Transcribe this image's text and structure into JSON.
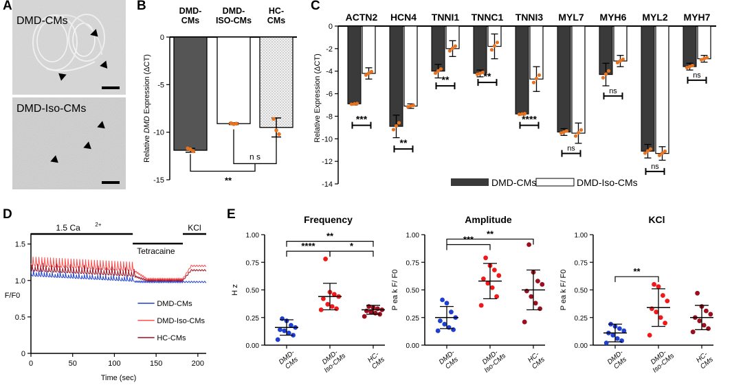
{
  "panel_labels": {
    "a": "A",
    "b": "B",
    "c": "C",
    "d": "D",
    "e": "E"
  },
  "colors": {
    "dmd_bar": "#555555",
    "orange_dot": "#E8731E",
    "blue": "#1F3FD0",
    "red": "#F01818",
    "darkred": "#9B0E1E",
    "pink_trace": "#FF4A4A"
  },
  "micro": {
    "top_label": "DMD-CMs",
    "bottom_label": "DMD-Iso-CMs"
  },
  "chart_data": [
    {
      "id": "B",
      "type": "bar",
      "categories": [
        "DMD-\nCMs",
        "DMD-\nISO-CMs",
        "HC-\nCMs"
      ],
      "values": [
        -11.9,
        -9.1,
        -9.5
      ],
      "errors": [
        0.2,
        0.1,
        1.0
      ],
      "points": [
        [
          -11.7,
          -11.8,
          -12.0
        ],
        [
          -9.05,
          -9.15,
          -9.1
        ],
        [
          -8.6,
          -9.8,
          -10.2
        ]
      ],
      "ylabel_pre": "Relative ",
      "ylabel_italic": "DMD",
      "ylabel_post": " Expression (ΔCT)",
      "ylim": [
        -15,
        0
      ],
      "yticks": [
        "0",
        "-5",
        "-10",
        "-15"
      ],
      "sig": [
        {
          "text": "** ",
          "between": [
            0,
            2
          ]
        },
        {
          "text": "n s",
          "between": [
            1,
            2
          ]
        }
      ]
    },
    {
      "id": "C",
      "type": "bar",
      "categories": [
        "ACTN2",
        "HCN4",
        "TNNI1",
        "TNNC1",
        "TNNI3",
        "MYL7",
        "MYH6",
        "MYL2",
        "MYH7"
      ],
      "series": [
        {
          "name": "DMD-CMs",
          "values": [
            -6.9,
            -8.9,
            -4.0,
            -4.2,
            -7.8,
            -9.4,
            -4.3,
            -11.1,
            -3.6
          ],
          "errors": [
            0.1,
            1.0,
            0.6,
            0.3,
            0.1,
            0.3,
            1.0,
            0.6,
            0.3
          ]
        },
        {
          "name": "DMD-Iso-CMs",
          "values": [
            -4.2,
            -7.1,
            -2.0,
            -1.8,
            -4.7,
            -9.5,
            -3.1,
            -11.3,
            -2.9
          ],
          "errors": [
            0.5,
            0.2,
            0.7,
            1.1,
            1.1,
            0.9,
            0.5,
            0.6,
            0.3
          ]
        }
      ],
      "ylabel": "Relative Expression (ΔCT)",
      "ylim": [
        -14,
        0
      ],
      "yticks": [
        "0",
        "-2",
        "-4",
        "-6",
        "-8",
        "-10",
        "-12",
        "-14"
      ],
      "sig": [
        "***",
        "**",
        "**",
        "**",
        "****",
        "ns",
        "ns",
        "ns",
        "ns"
      ],
      "sig_y": [
        -8.8,
        -10.9,
        -5.3,
        -5.0,
        -8.8,
        -11.3,
        -6.2,
        -12.9,
        -4.8
      ],
      "legend": [
        "DMD-CMs",
        "DMD-Iso-CMs"
      ]
    },
    {
      "id": "D",
      "type": "line",
      "xlabel": "Time (sec)",
      "ylabel": "F/F0",
      "xlim": [
        0,
        210
      ],
      "ylim": [
        0,
        1.6
      ],
      "xticks": [
        "0",
        "50",
        "100",
        "150",
        "200"
      ],
      "yticks": [
        "0",
        "0.5",
        "1.0",
        "1.5"
      ],
      "annotations": {
        "ca": "1.5  Ca",
        "ca_sup": "2+",
        "tetracaine": "Tetracaine",
        "kcl": "KCl"
      },
      "phases": [
        [
          0,
          122
        ],
        [
          122,
          182
        ],
        [
          182,
          210
        ]
      ],
      "legend": [
        "DMD-CMs",
        "DMD-Iso-CMs",
        "HC-CMs"
      ]
    },
    {
      "id": "E1",
      "type": "scatter",
      "title": "Frequency",
      "ylabel": "H z",
      "ylim": [
        0,
        1.0
      ],
      "yticks": [
        "0.00",
        "0.25",
        "0.50",
        "0.75",
        "1.00"
      ],
      "groups": [
        "DMD-\nCMs",
        "DMD-\nIso-CMs",
        "HC-\nCMs"
      ],
      "points": [
        [
          0.05,
          0.09,
          0.11,
          0.13,
          0.14,
          0.16,
          0.18,
          0.22,
          0.24
        ],
        [
          0.32,
          0.33,
          0.35,
          0.37,
          0.42,
          0.44,
          0.46,
          0.48,
          0.78
        ],
        [
          0.26,
          0.28,
          0.29,
          0.3,
          0.31,
          0.32,
          0.33,
          0.34,
          0.35
        ]
      ],
      "mean": [
        0.16,
        0.44,
        0.32
      ],
      "sd": [
        0.07,
        0.12,
        0.04
      ],
      "sig": [
        {
          "text": "**",
          "between": [
            0,
            2
          ]
        },
        {
          "text": "****",
          "between": [
            0,
            1
          ]
        },
        {
          "text": "*",
          "between": [
            1,
            2
          ]
        }
      ]
    },
    {
      "id": "E2",
      "type": "scatter",
      "title": "Amplitude",
      "ylabel": "P ea k  F/ F0",
      "ylim": [
        0,
        1.0
      ],
      "yticks": [
        "0.00",
        "0.25",
        "0.50",
        "0.75",
        "1.00"
      ],
      "groups": [
        "DMD-\nCMs",
        "DMD-\nIso-CMs",
        "HC-\nCMs"
      ],
      "points": [
        [
          0.13,
          0.14,
          0.16,
          0.19,
          0.22,
          0.25,
          0.3,
          0.38,
          0.41
        ],
        [
          0.36,
          0.44,
          0.52,
          0.56,
          0.6,
          0.63,
          0.68,
          0.72,
          0.79
        ],
        [
          0.21,
          0.33,
          0.38,
          0.44,
          0.49,
          0.55,
          0.58,
          0.66,
          0.91
        ]
      ],
      "mean": [
        0.25,
        0.58,
        0.5
      ],
      "sd": [
        0.1,
        0.16,
        0.18
      ],
      "sig": [
        {
          "text": "**",
          "between": [
            0,
            2
          ]
        },
        {
          "text": "***",
          "between": [
            0,
            1
          ]
        }
      ]
    },
    {
      "id": "E3",
      "type": "scatter",
      "title": "KCl",
      "ylabel": "P ea k  F/ F0",
      "ylim": [
        0,
        1.0
      ],
      "yticks": [
        "0.00",
        "0.25",
        "0.50",
        "0.75",
        "1.00"
      ],
      "groups": [
        "DMD-\nCMs",
        "DMD-\nIso-CMs",
        "HC-\nCMs"
      ],
      "points": [
        [
          0.02,
          0.04,
          0.06,
          0.09,
          0.11,
          0.13,
          0.15,
          0.17,
          0.19
        ],
        [
          0.09,
          0.2,
          0.25,
          0.3,
          0.33,
          0.4,
          0.45,
          0.53,
          0.55
        ],
        [
          0.12,
          0.15,
          0.18,
          0.22,
          0.25,
          0.28,
          0.31,
          0.35,
          0.47
        ]
      ],
      "mean": [
        0.11,
        0.34,
        0.25
      ],
      "sd": [
        0.08,
        0.17,
        0.11
      ],
      "sig": [
        {
          "text": "**",
          "between": [
            0,
            1
          ]
        }
      ]
    }
  ]
}
